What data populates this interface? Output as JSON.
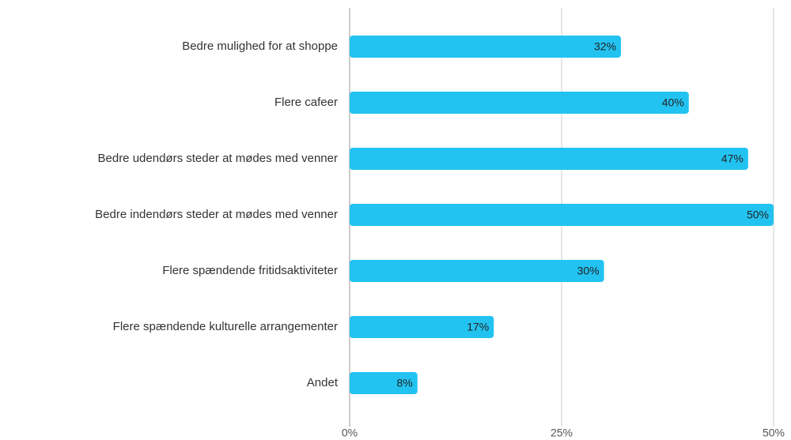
{
  "chart_data": {
    "type": "bar",
    "orientation": "horizontal",
    "categories": [
      "Bedre mulighed for at shoppe",
      "Flere cafeer",
      "Bedre udendørs steder at mødes med venner",
      "Bedre indendørs steder at mødes med venner",
      "Flere spændende fritidsaktiviteter",
      "Flere spændende kulturelle arrangementer",
      "Andet"
    ],
    "values": [
      32,
      40,
      47,
      50,
      30,
      17,
      8
    ],
    "value_labels": [
      "32%",
      "40%",
      "47%",
      "50%",
      "30%",
      "17%",
      "8%"
    ],
    "color": "#22c3f1",
    "xlim": [
      0,
      50
    ],
    "xticks": [
      {
        "value": 0,
        "label": "0%"
      },
      {
        "value": 25,
        "label": "25%"
      },
      {
        "value": 50,
        "label": "50%"
      }
    ],
    "grid": true
  }
}
